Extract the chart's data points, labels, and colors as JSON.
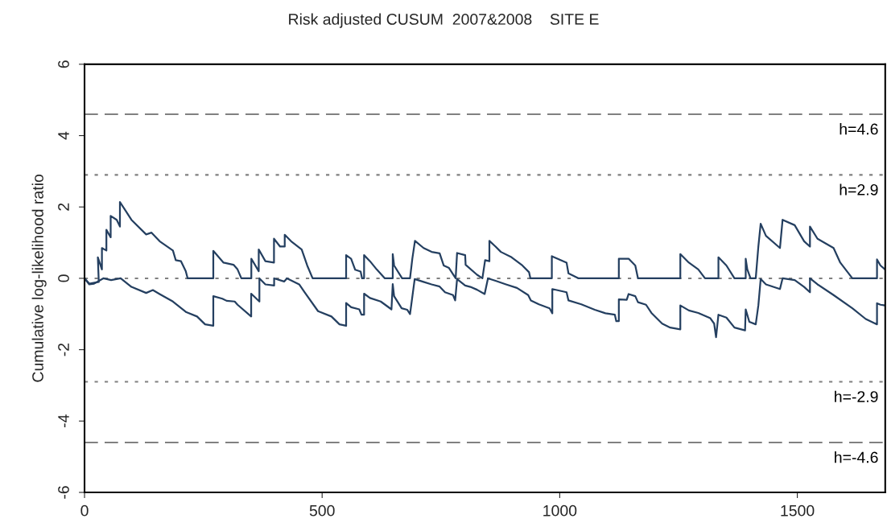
{
  "chart_data": {
    "type": "line",
    "title": "Risk adjusted CUSUM  2007&2008    SITE E",
    "ylabel": "Cumulative log-likelihood ratio",
    "xlim": [
      0,
      1685
    ],
    "xticks": [
      0,
      500,
      1000,
      1500
    ],
    "ylim": [
      -6,
      6
    ],
    "yticks": [
      -6,
      -4,
      -2,
      0,
      2,
      4,
      6
    ],
    "grid": false,
    "legend": false,
    "marker": "none",
    "line_style": "solid",
    "series": [
      {
        "color": "#243f60",
        "x": [
          0,
          10,
          30,
          28,
          36.6,
          36.6,
          46,
          46,
          55,
          55,
          67.7,
          74.5,
          74.5,
          98.7,
          129.7,
          141,
          158,
          186,
          192,
          203,
          213,
          217,
          271,
          271,
          292.5,
          313.5,
          322,
          330,
          351,
          351,
          366.6,
          366.6,
          380.6,
          398.7,
          398.7,
          411.6,
          421.3,
          421.3,
          434.6,
          457,
          468.6,
          480,
          550.5,
          550.5,
          561,
          569.6,
          581,
          584,
          588.3,
          588.3,
          600.7,
          614.8,
          632,
          648.6,
          648.6,
          651.5,
          668.3,
          685,
          689.8,
          695.4,
          713.5,
          730.4,
          747.3,
          755.8,
          767,
          781,
          784,
          801,
          802,
          826,
          837.3,
          843,
          852,
          852,
          865,
          876.2,
          898.8,
          921.4,
          935.5,
          938.3,
          983.4,
          983.4,
          1014.4,
          1018.4,
          1039.8,
          1124.4,
          1124.4,
          1145,
          1159,
          1164.7,
          1253.8,
          1253.8,
          1271.8,
          1291.6,
          1305.7,
          1334,
          1334,
          1350.8,
          1367.7,
          1391.4,
          1391.4,
          1394.8,
          1401.5,
          1412.5,
          1418,
          1422.9,
          1434,
          1463.5,
          1469,
          1494.5,
          1514.3,
          1526.6,
          1526.6,
          1542.5,
          1576.3,
          1590.4,
          1615.8,
          1667.7,
          1667.7,
          1675,
          1684.7
        ],
        "values": [
          0,
          -0.15,
          -0.1,
          0.59,
          0.25,
          0.85,
          0.78,
          1.36,
          1.15,
          1.75,
          1.64,
          1.45,
          2.14,
          1.64,
          1.23,
          1.28,
          1.04,
          0.78,
          0.51,
          0.48,
          0.2,
          0,
          0,
          0.77,
          0.44,
          0.38,
          0.25,
          0,
          0,
          0.55,
          0.2,
          0.81,
          0.48,
          0.44,
          1.11,
          0.89,
          0.89,
          1.22,
          1.04,
          0.81,
          0.36,
          0,
          0,
          0.65,
          0.55,
          0.24,
          0.19,
          0,
          0,
          0.65,
          0.48,
          0.25,
          0,
          0,
          0.68,
          0.36,
          0,
          0,
          0.55,
          1.05,
          0.85,
          0.74,
          0.7,
          0.36,
          0.29,
          0,
          0.71,
          0.65,
          0.38,
          0.1,
          0,
          0.51,
          0.48,
          1.05,
          0.89,
          0.74,
          0.59,
          0.36,
          0.17,
          0,
          0,
          0.62,
          0.44,
          0.14,
          0,
          0,
          0.55,
          0.55,
          0.36,
          0,
          0,
          0.68,
          0.44,
          0.25,
          0,
          0,
          0.59,
          0.36,
          0,
          0,
          0.55,
          0.25,
          0,
          0,
          0.89,
          1.53,
          1.19,
          0.85,
          1.64,
          1.49,
          1.04,
          0.89,
          1.45,
          1.11,
          0.85,
          0.44,
          0,
          0,
          0.53,
          0.36,
          0.25
        ]
      },
      {
        "color": "#243f60",
        "x": [
          0,
          10,
          20,
          39.5,
          56,
          76,
          98.7,
          129.7,
          143.8,
          158,
          186,
          214.3,
          236.8,
          253.7,
          271,
          271,
          290,
          299,
          316,
          322,
          350.7,
          350.7,
          368,
          368,
          380.6,
          399,
          399,
          420,
          426,
          451.7,
          463,
          491.4,
          519.6,
          536.5,
          550.5,
          550.5,
          561.2,
          578.2,
          582.8,
          588.3,
          588.3,
          600.7,
          623.3,
          645.9,
          648.6,
          651.5,
          667.3,
          679,
          685,
          694.8,
          713.5,
          730.4,
          747.3,
          758.6,
          775.5,
          780,
          784,
          801,
          812,
          826,
          842,
          849,
          865,
          887,
          910,
          933.6,
          939.3,
          956.2,
          978.8,
          984.4,
          984.4,
          1014.4,
          1018.4,
          1045.5,
          1073.7,
          1096.3,
          1116,
          1119,
          1124.4,
          1124.4,
          1141,
          1145,
          1159,
          1164.7,
          1181.6,
          1193,
          1215.6,
          1232.5,
          1253.8,
          1253.8,
          1271.8,
          1291.6,
          1317,
          1325,
          1329,
          1334,
          1350.8,
          1367.7,
          1390,
          1391.4,
          1399,
          1412.5,
          1418,
          1422.9,
          1434,
          1463.5,
          1469,
          1494.5,
          1514.3,
          1526.6,
          1526.6,
          1542.5,
          1576.3,
          1615.8,
          1644,
          1667.7,
          1667.7,
          1675,
          1684.7
        ],
        "values": [
          0,
          -0.17,
          -0.15,
          0,
          -0.05,
          0,
          -0.24,
          -0.41,
          -0.33,
          -0.44,
          -0.65,
          -0.95,
          -1.07,
          -1.29,
          -1.33,
          -0.5,
          -0.57,
          -0.63,
          -0.65,
          -0.74,
          -1.07,
          -0.43,
          -0.65,
          0,
          -0.17,
          -0.2,
          0,
          -0.09,
          0,
          -0.17,
          -0.39,
          -0.92,
          -1.07,
          -1.29,
          -1.33,
          -0.69,
          -0.81,
          -0.87,
          -1.02,
          -1.02,
          -0.43,
          -0.55,
          -0.65,
          -0.87,
          -0.16,
          -0.5,
          -0.84,
          -0.88,
          -1.0,
          -0.02,
          -0.1,
          -0.17,
          -0.23,
          -0.39,
          -0.47,
          -0.62,
          -0.02,
          -0.2,
          -0.24,
          -0.32,
          -0.44,
          0,
          -0.07,
          -0.17,
          -0.27,
          -0.47,
          -0.62,
          -0.73,
          -0.84,
          -0.98,
          -0.3,
          -0.39,
          -0.62,
          -0.73,
          -0.88,
          -0.98,
          -1.02,
          -1.2,
          -1.2,
          -0.59,
          -0.6,
          -0.44,
          -0.5,
          -0.67,
          -0.74,
          -0.97,
          -1.27,
          -1.38,
          -1.43,
          -0.76,
          -0.9,
          -0.97,
          -1.12,
          -1.27,
          -1.65,
          -1.02,
          -1.1,
          -1.38,
          -1.46,
          -0.87,
          -1.22,
          -1.29,
          -0.76,
          -0.02,
          -0.17,
          -0.3,
          0,
          -0.05,
          -0.24,
          -0.39,
          0,
          -0.17,
          -0.47,
          -0.84,
          -1.14,
          -1.29,
          -0.7,
          -0.74,
          -0.76
        ]
      }
    ],
    "ref_lines": [
      {
        "axis": "y",
        "value": 4.6,
        "label": "h=4.6",
        "line_style": "dashed",
        "color": "#808080"
      },
      {
        "axis": "y",
        "value": 2.9,
        "label": "h=2.9",
        "line_style": "dotted",
        "color": "#808080"
      },
      {
        "axis": "y",
        "value": 0,
        "line_style": "dotted",
        "color": "#808080"
      },
      {
        "axis": "y",
        "value": -2.9,
        "label": "h=-2.9",
        "line_style": "dotted",
        "color": "#808080"
      },
      {
        "axis": "y",
        "value": -4.6,
        "label": "h=-4.6",
        "line_style": "dashed",
        "color": "#808080"
      }
    ]
  }
}
